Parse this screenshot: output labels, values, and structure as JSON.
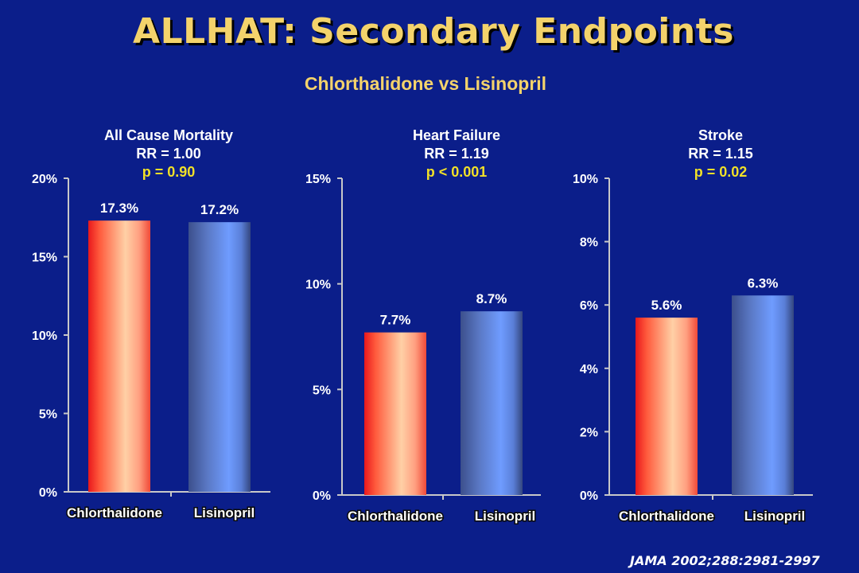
{
  "slide": {
    "title": "ALLHAT: Secondary Endpoints",
    "subtitle": "Chlorthalidone vs Lisinopril",
    "source": "JAMA 2002;288:2981-2997"
  },
  "colors": {
    "background": "#0b1e8a",
    "title": "#f4d36b",
    "p_value": "#f0e028",
    "chlorthalidone_bar": "#ff5a3c",
    "lisinopril_bar": "#6f96f0"
  },
  "chart_data": [
    {
      "type": "bar",
      "title": "All Cause Mortality",
      "stat_rr": "RR = 1.00",
      "stat_p": "p = 0.90",
      "categories": [
        "Chlorthalidone",
        "Lisinopril"
      ],
      "values": [
        17.3,
        17.2
      ],
      "value_labels": [
        "17.3%",
        "17.2%"
      ],
      "ylim": [
        0,
        20
      ],
      "yticks": [
        0,
        5,
        10,
        15,
        20
      ],
      "ytick_labels": [
        "0%",
        "5%",
        "10%",
        "15%",
        "20%"
      ]
    },
    {
      "type": "bar",
      "title": "Heart Failure",
      "stat_rr": "RR = 1.19",
      "stat_p": "p < 0.001",
      "categories": [
        "Chlorthalidone",
        "Lisinopril"
      ],
      "values": [
        7.7,
        8.7
      ],
      "value_labels": [
        "7.7%",
        "8.7%"
      ],
      "ylim": [
        0,
        15
      ],
      "yticks": [
        0,
        5,
        10,
        15
      ],
      "ytick_labels": [
        "0%",
        "5%",
        "10%",
        "15%"
      ]
    },
    {
      "type": "bar",
      "title": "Stroke",
      "stat_rr": "RR = 1.15",
      "stat_p": "p = 0.02",
      "categories": [
        "Chlorthalidone",
        "Lisinopril"
      ],
      "values": [
        5.6,
        6.3
      ],
      "value_labels": [
        "5.6%",
        "6.3%"
      ],
      "ylim": [
        0,
        10
      ],
      "yticks": [
        0,
        2,
        4,
        6,
        8,
        10
      ],
      "ytick_labels": [
        "0%",
        "2%",
        "4%",
        "6%",
        "8%",
        "10%"
      ]
    }
  ]
}
